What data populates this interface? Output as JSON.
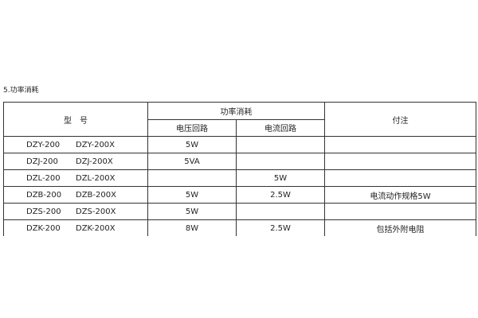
{
  "section_title": "5.功率消耗",
  "table": {
    "header": {
      "model": "型　号",
      "power_group": "功率消耗",
      "voltage_circuit": "电压回路",
      "current_circuit": "电流回路",
      "remarks": "付注"
    },
    "rows": [
      {
        "model_a": "DZY-200",
        "model_b": "DZY-200X",
        "voltage": "5W",
        "current": "",
        "remarks": ""
      },
      {
        "model_a": "DZJ-200",
        "model_b": "DZJ-200X",
        "voltage": "5VA",
        "current": "",
        "remarks": ""
      },
      {
        "model_a": "DZL-200",
        "model_b": "DZL-200X",
        "voltage": "",
        "current": "5W",
        "remarks": ""
      },
      {
        "model_a": "DZB-200",
        "model_b": "DZB-200X",
        "voltage": "5W",
        "current": "2.5W",
        "remarks": "电流动作规格5W"
      },
      {
        "model_a": "DZS-200",
        "model_b": "DZS-200X",
        "voltage": "5W",
        "current": "",
        "remarks": ""
      },
      {
        "model_a": "DZK-200",
        "model_b": "DZK-200X",
        "voltage": "8W",
        "current": "2.5W",
        "remarks": "包括外附电阻"
      }
    ]
  }
}
